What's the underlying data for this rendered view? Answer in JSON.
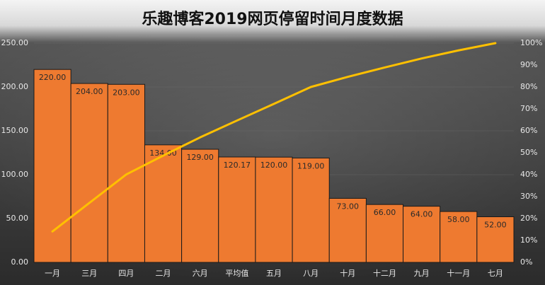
{
  "chart_data": {
    "type": "bar",
    "title": "乐趣博客2019网页停留时间月度数据",
    "categories": [
      "一月",
      "三月",
      "四月",
      "二月",
      "六月",
      "平均值",
      "五月",
      "八月",
      "十月",
      "十二月",
      "九月",
      "十一月",
      "七月"
    ],
    "series": [
      {
        "type": "bar",
        "color": "#ee7a30",
        "values": [
          220,
          204,
          203,
          134,
          129,
          120.17,
          120,
          119,
          73,
          66,
          64,
          58,
          52
        ],
        "value_labels": [
          "220.00",
          "204.00",
          "203.00",
          "134.00",
          "129.00",
          "120.17",
          "120.00",
          "119.00",
          "73.00",
          "66.00",
          "64.00",
          "58.00",
          "52.00"
        ]
      },
      {
        "type": "line",
        "color": "#ffc000",
        "axis": "y2",
        "values": [
          14.1,
          27.1,
          40.1,
          48.7,
          57.0,
          64.7,
          72.3,
          80.0,
          84.6,
          88.9,
          93.0,
          96.7,
          100
        ]
      }
    ],
    "ylim": [
      0,
      250
    ],
    "yticks": [
      {
        "value": 0,
        "label": "0.00"
      },
      {
        "value": 50,
        "label": "50.00"
      },
      {
        "value": 100,
        "label": "100.00"
      },
      {
        "value": 150,
        "label": "150.00"
      },
      {
        "value": 200,
        "label": "200.00"
      },
      {
        "value": 250,
        "label": "250.00"
      }
    ],
    "y2lim": [
      0,
      100
    ],
    "y2ticks": [
      {
        "value": 0,
        "label": "0%"
      },
      {
        "value": 10,
        "label": "10%"
      },
      {
        "value": 20,
        "label": "20%"
      },
      {
        "value": 30,
        "label": "30%"
      },
      {
        "value": 40,
        "label": "40%"
      },
      {
        "value": 50,
        "label": "50%"
      },
      {
        "value": 60,
        "label": "60%"
      },
      {
        "value": 70,
        "label": "70%"
      },
      {
        "value": 80,
        "label": "80%"
      },
      {
        "value": 90,
        "label": "90%"
      },
      {
        "value": 100,
        "label": "100%"
      }
    ],
    "grid": true
  }
}
